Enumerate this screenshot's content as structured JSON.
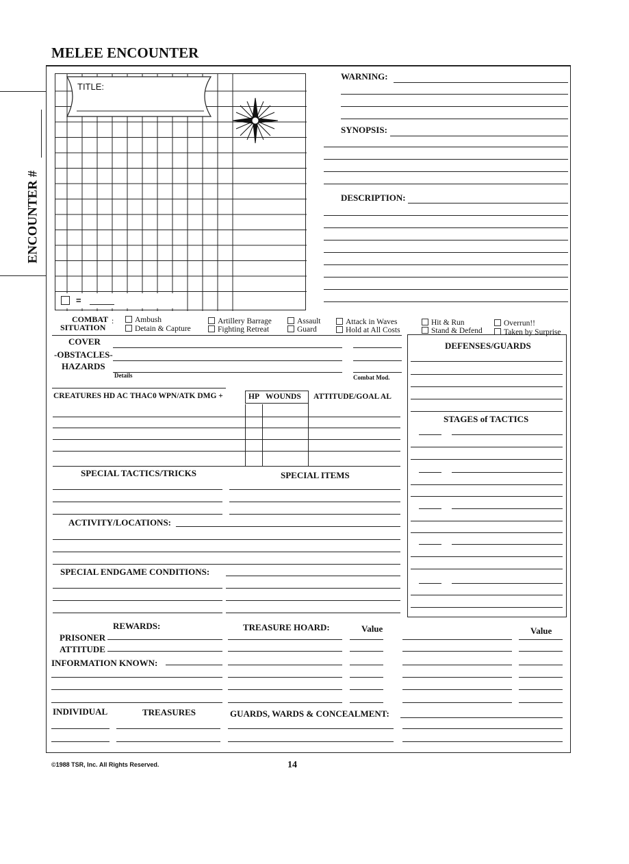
{
  "page_title": "MELEE ENCOUNTER",
  "side_label": "ENCOUNTER #",
  "map": {
    "title_label": "TITLE:",
    "scale_label": "="
  },
  "right_fields": {
    "warning": "WARNING:",
    "synopsis": "SYNOPSIS:",
    "description": "DESCRIPTION:"
  },
  "combat_situation": {
    "label_line1": "COMBAT",
    "label_line2": "SITUATION",
    "options": [
      "Ambush",
      "Detain & Capture",
      "Artillery Barrage",
      "Fighting Retreat",
      "Assault",
      "Guard",
      "Attack in Waves",
      "Hold at All Costs",
      "Hit & Run",
      "Stand & Defend",
      "Overrun!!",
      "Taken by Surprise"
    ]
  },
  "terrain": {
    "cover": "COVER",
    "obstacles": "-OBSTACLES-",
    "hazards": "HAZARDS",
    "details": "Details",
    "combat_mod": "Combat Mod."
  },
  "defenses": {
    "title": "DEFENSES/GUARDS",
    "stages": "STAGES of TACTICS"
  },
  "creatures": {
    "header": "CREATURES HD  AC  THAC0  WPN/ATK DMG +",
    "hp": "HP",
    "wounds": "WOUNDS",
    "attitude": "ATTITUDE/GOAL  AL"
  },
  "special_tactics": "SPECIAL TACTICS/TRICKS",
  "special_items": "SPECIAL ITEMS",
  "activity": "ACTIVITY/LOCATIONS:",
  "endgame": "SPECIAL ENDGAME CONDITIONS:",
  "rewards": {
    "title": "REWARDS:",
    "prisoner": "PRISONER",
    "attitude": "ATTITUDE",
    "info": "INFORMATION KNOWN:"
  },
  "treasure": {
    "hoard": "TREASURE HOARD:",
    "value1": "Value",
    "value2": "Value"
  },
  "bottom": {
    "individual": "INDIVIDUAL",
    "treasures": "TREASURES",
    "guards": "GUARDS, WARDS & CONCEALMENT:"
  },
  "footer": {
    "copyright": "©1988 TSR, Inc. All Rights Reserved.",
    "page_number": "14"
  }
}
